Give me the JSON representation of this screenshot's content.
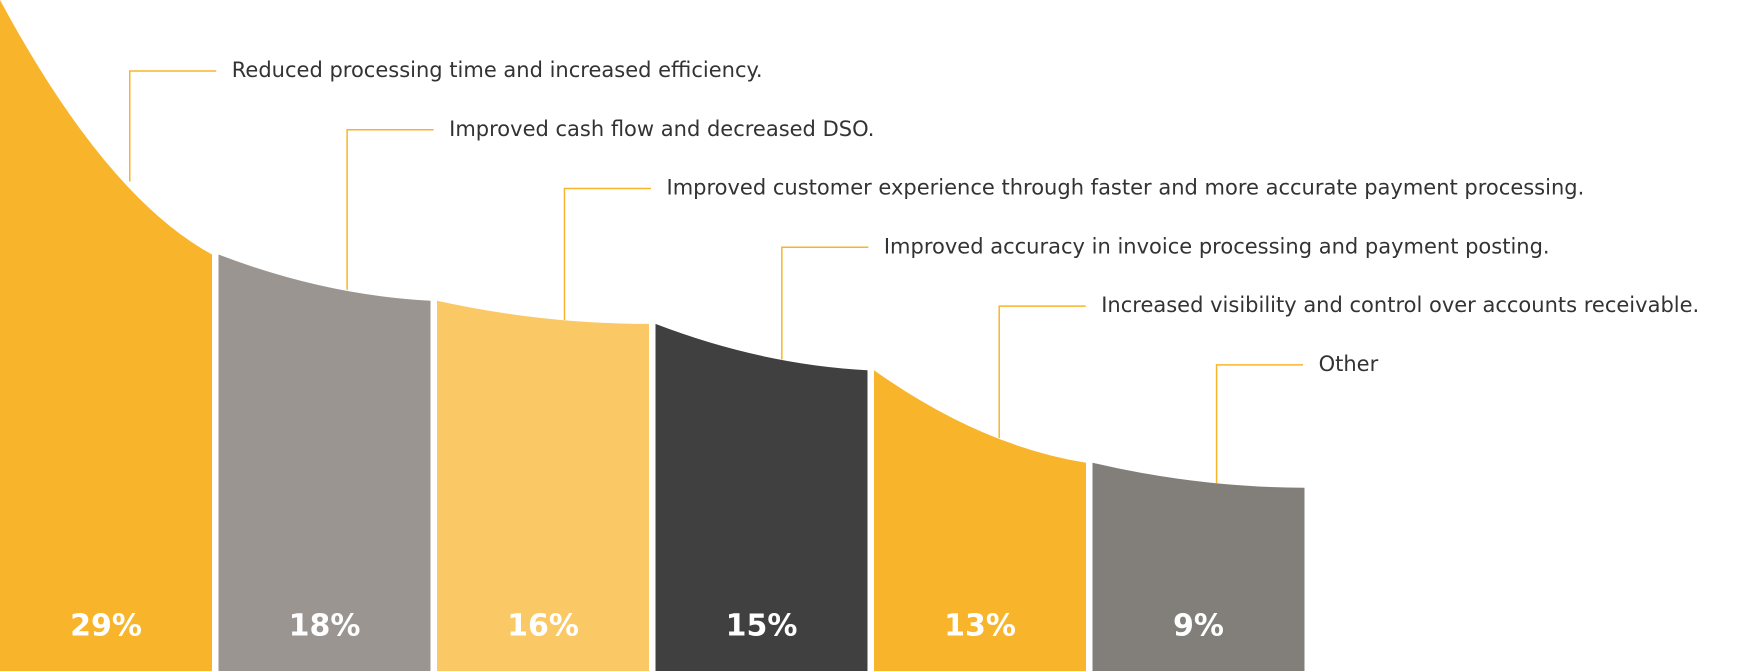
{
  "chart_data": {
    "type": "curved-bar",
    "categories": [
      "Reduced processing time and increased efficiency.",
      "Improved cash flow and decreased DSO.",
      "Improved customer experience through faster and more accurate payment processing.",
      "Improved accuracy in invoice processing and payment posting.",
      "Increased visibility and control over accounts receivable.",
      "Other"
    ],
    "values": [
      29,
      18,
      16,
      15,
      13,
      9
    ],
    "value_labels": [
      "29%",
      "18%",
      "16%",
      "15%",
      "13%",
      "9%"
    ],
    "colors": [
      "#F8B52B",
      "#9B9592",
      "#FAC865",
      "#404040",
      "#F8B52B",
      "#827F7A"
    ],
    "leader_color": "#F8B52B"
  }
}
